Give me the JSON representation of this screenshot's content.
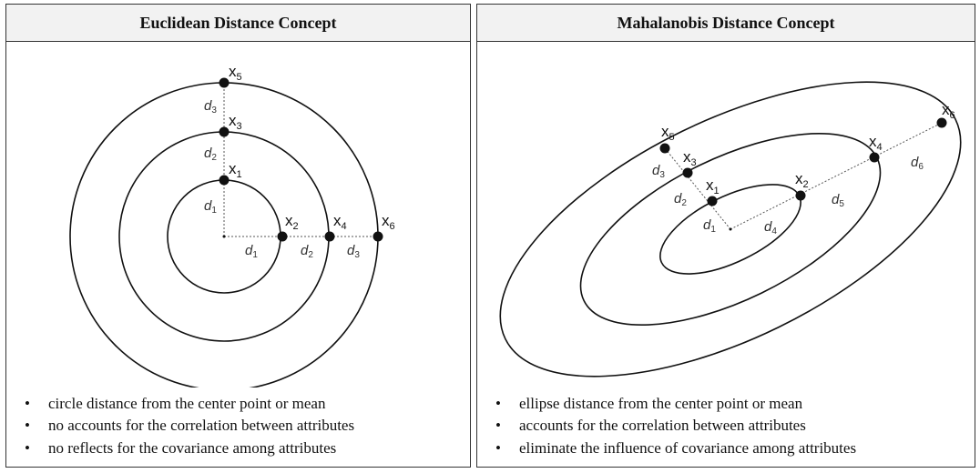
{
  "left_panel": {
    "title": "Euclidean Distance Concept",
    "bullets": [
      "circle distance from the center point or mean",
      "no accounts for the correlation between attributes",
      "no reflects for the covariance among attributes"
    ],
    "points": {
      "x1": "1",
      "x2": "2",
      "x3": "3",
      "x4": "4",
      "x5": "5",
      "x6": "6"
    },
    "distance_labels": {
      "vertical": [
        "1",
        "2",
        "3"
      ],
      "horizontal": [
        "1",
        "2",
        "3"
      ]
    }
  },
  "right_panel": {
    "title": "Mahalanobis Distance Concept",
    "bullets": [
      "ellipse distance from the center point or mean",
      "accounts for the correlation between attributes",
      "eliminate the influence of covariance among attributes"
    ],
    "points": {
      "x1": "1",
      "x2": "2",
      "x3": "3",
      "x4": "4",
      "x5": "5",
      "x6": "6"
    },
    "distance_labels": {
      "upper": [
        "1",
        "2",
        "3"
      ],
      "lower": [
        "4",
        "5",
        "6"
      ]
    }
  },
  "point_letter": "x",
  "distance_letter": "d"
}
